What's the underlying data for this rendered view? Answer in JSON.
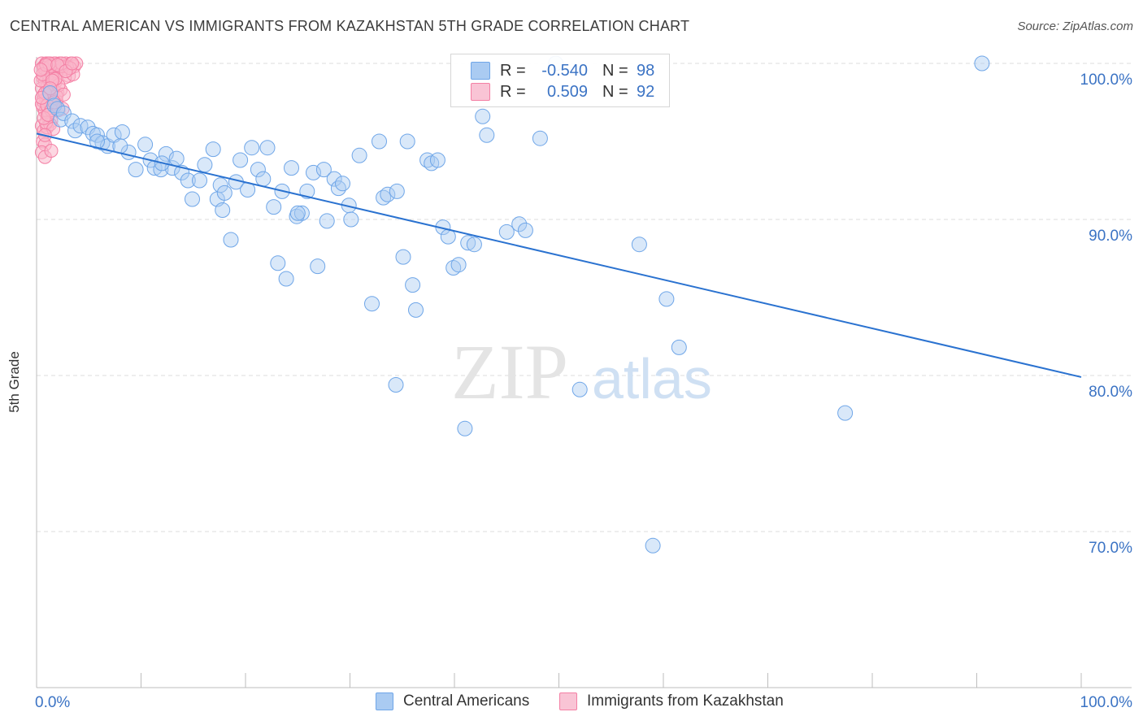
{
  "header": {
    "title": "CENTRAL AMERICAN VS IMMIGRANTS FROM KAZAKHSTAN 5TH GRADE CORRELATION CHART",
    "source": "Source: ZipAtlas.com"
  },
  "watermark": {
    "zip": "ZIP",
    "atlas": "atlas"
  },
  "legend": {
    "rows": [
      {
        "r_label": "R =",
        "r_value": "-0.540",
        "n_label": "N =",
        "n_value": "98",
        "color": "#6fa6e8"
      },
      {
        "r_label": "R =",
        "r_value": "0.509",
        "n_label": "N =",
        "n_value": "92",
        "color": "#f47fa4"
      }
    ]
  },
  "bottom_legend": {
    "items": [
      {
        "label": "Central Americans",
        "color": "#6fa6e8"
      },
      {
        "label": "Immigrants from Kazakhstan",
        "color": "#f47fa4"
      }
    ]
  },
  "colors": {
    "blue_fill": "#aacbf2",
    "blue_stroke": "#6fa6e8",
    "blue_line": "#2a72d0",
    "pink_fill": "#f9b6cb",
    "pink_stroke": "#f47fa4",
    "axis_label": "#3b73c4"
  },
  "chart_data": {
    "type": "scatter",
    "title": "CENTRAL AMERICAN VS IMMIGRANTS FROM KAZAKHSTAN 5TH GRADE CORRELATION CHART",
    "xlabel": "",
    "ylabel": "5th Grade",
    "xlim": [
      0,
      100
    ],
    "ylim": [
      60,
      100
    ],
    "x_tick_labels": [
      "0.0%",
      "100.0%"
    ],
    "y_ticks": [
      100,
      90,
      80,
      70
    ],
    "y_tick_labels": [
      "100.0%",
      "90.0%",
      "80.0%",
      "70.0%"
    ],
    "grid": "horizontal dashed",
    "legend_position": "top-center",
    "series": [
      {
        "name": "Central Americans",
        "trend": {
          "x": [
            0,
            100
          ],
          "y": [
            95.5,
            79.9
          ]
        },
        "points": [
          [
            1.3,
            98.1
          ],
          [
            1.7,
            97.3
          ],
          [
            2.0,
            97.1
          ],
          [
            2.3,
            96.4
          ],
          [
            2.6,
            96.8
          ],
          [
            3.4,
            96.3
          ],
          [
            3.7,
            95.7
          ],
          [
            4.2,
            96.0
          ],
          [
            4.9,
            95.9
          ],
          [
            5.4,
            95.5
          ],
          [
            5.8,
            95.4
          ],
          [
            6.3,
            94.9
          ],
          [
            6.8,
            94.7
          ],
          [
            7.4,
            95.4
          ],
          [
            8.2,
            95.6
          ],
          [
            8.8,
            94.3
          ],
          [
            9.5,
            93.2
          ],
          [
            10.4,
            94.8
          ],
          [
            10.9,
            93.8
          ],
          [
            11.3,
            93.3
          ],
          [
            11.9,
            93.2
          ],
          [
            12.4,
            94.2
          ],
          [
            13.0,
            93.3
          ],
          [
            13.4,
            93.9
          ],
          [
            13.9,
            93.0
          ],
          [
            14.5,
            92.5
          ],
          [
            14.9,
            91.3
          ],
          [
            15.6,
            92.5
          ],
          [
            16.1,
            93.5
          ],
          [
            16.9,
            94.5
          ],
          [
            17.3,
            91.3
          ],
          [
            17.6,
            92.2
          ],
          [
            18.0,
            91.7
          ],
          [
            18.6,
            88.7
          ],
          [
            19.1,
            92.4
          ],
          [
            19.5,
            93.8
          ],
          [
            20.2,
            91.9
          ],
          [
            20.6,
            94.6
          ],
          [
            21.2,
            93.2
          ],
          [
            21.7,
            92.6
          ],
          [
            22.1,
            94.6
          ],
          [
            22.7,
            90.8
          ],
          [
            23.1,
            87.2
          ],
          [
            23.5,
            91.8
          ],
          [
            23.9,
            86.2
          ],
          [
            24.4,
            93.3
          ],
          [
            24.9,
            90.2
          ],
          [
            25.4,
            90.4
          ],
          [
            25.9,
            91.8
          ],
          [
            26.5,
            93.0
          ],
          [
            26.9,
            87.0
          ],
          [
            27.5,
            93.2
          ],
          [
            27.8,
            89.9
          ],
          [
            28.5,
            92.6
          ],
          [
            28.9,
            92.0
          ],
          [
            29.3,
            92.3
          ],
          [
            29.9,
            90.9
          ],
          [
            30.1,
            90.0
          ],
          [
            30.9,
            94.1
          ],
          [
            32.1,
            84.6
          ],
          [
            32.8,
            95.0
          ],
          [
            33.2,
            91.4
          ],
          [
            33.6,
            91.6
          ],
          [
            34.5,
            91.8
          ],
          [
            34.4,
            79.4
          ],
          [
            35.1,
            87.6
          ],
          [
            35.5,
            95.0
          ],
          [
            36.0,
            85.8
          ],
          [
            36.3,
            84.2
          ],
          [
            37.4,
            93.8
          ],
          [
            37.8,
            93.6
          ],
          [
            38.4,
            93.8
          ],
          [
            38.9,
            89.5
          ],
          [
            39.4,
            88.9
          ],
          [
            39.9,
            86.9
          ],
          [
            40.4,
            87.1
          ],
          [
            41.0,
            76.6
          ],
          [
            41.3,
            88.5
          ],
          [
            41.9,
            88.4
          ],
          [
            42.7,
            96.6
          ],
          [
            43.1,
            95.4
          ],
          [
            45.0,
            89.2
          ],
          [
            46.2,
            89.7
          ],
          [
            46.8,
            89.3
          ],
          [
            48.2,
            95.2
          ],
          [
            49.7,
            100.0
          ],
          [
            52.0,
            79.1
          ],
          [
            57.7,
            88.4
          ],
          [
            59.0,
            69.1
          ],
          [
            60.3,
            84.9
          ],
          [
            61.5,
            81.8
          ],
          [
            77.4,
            77.6
          ],
          [
            90.5,
            100.0
          ],
          [
            8.0,
            94.7
          ],
          [
            12.0,
            93.6
          ],
          [
            5.8,
            95.0
          ],
          [
            17.8,
            90.6
          ],
          [
            25.0,
            90.4
          ]
        ]
      },
      {
        "name": "Immigrants from Kazakhstan",
        "points": [
          [
            0.5,
            100.0
          ],
          [
            0.7,
            99.8
          ],
          [
            0.9,
            99.5
          ],
          [
            1.0,
            100.0
          ],
          [
            1.2,
            99.6
          ],
          [
            1.3,
            100.0
          ],
          [
            1.5,
            99.8
          ],
          [
            1.6,
            99.4
          ],
          [
            1.8,
            100.0
          ],
          [
            2.0,
            99.7
          ],
          [
            2.2,
            100.0
          ],
          [
            2.4,
            99.6
          ],
          [
            2.6,
            99.8
          ],
          [
            2.8,
            100.0
          ],
          [
            3.0,
            99.6
          ],
          [
            3.1,
            99.2
          ],
          [
            3.3,
            100.0
          ],
          [
            3.6,
            99.8
          ],
          [
            3.8,
            100.0
          ],
          [
            0.6,
            99.1
          ],
          [
            0.8,
            98.8
          ],
          [
            1.0,
            98.5
          ],
          [
            1.2,
            98.9
          ],
          [
            1.4,
            98.6
          ],
          [
            1.6,
            98.3
          ],
          [
            1.8,
            98.8
          ],
          [
            2.0,
            98.1
          ],
          [
            0.5,
            98.4
          ],
          [
            0.7,
            98.0
          ],
          [
            0.9,
            97.7
          ],
          [
            1.1,
            97.9
          ],
          [
            1.3,
            97.5
          ],
          [
            1.5,
            97.7
          ],
          [
            1.7,
            97.3
          ],
          [
            1.9,
            97.6
          ],
          [
            2.1,
            97.0
          ],
          [
            0.6,
            97.2
          ],
          [
            0.8,
            96.9
          ],
          [
            1.0,
            96.6
          ],
          [
            1.2,
            96.8
          ],
          [
            1.4,
            96.3
          ],
          [
            0.5,
            96.0
          ],
          [
            0.7,
            95.7
          ],
          [
            1.0,
            95.9
          ],
          [
            0.6,
            95.0
          ],
          [
            0.8,
            94.8
          ],
          [
            0.5,
            94.3
          ],
          [
            0.8,
            94.0
          ],
          [
            1.4,
            94.4
          ],
          [
            2.3,
            98.3
          ],
          [
            2.5,
            97.1
          ],
          [
            1.1,
            99.3
          ],
          [
            1.9,
            99.5
          ],
          [
            2.7,
            99.1
          ],
          [
            0.9,
            100.0
          ],
          [
            1.7,
            100.0
          ],
          [
            2.9,
            99.8
          ],
          [
            3.5,
            99.3
          ],
          [
            0.4,
            98.9
          ],
          [
            0.6,
            97.6
          ],
          [
            1.3,
            96.1
          ],
          [
            0.7,
            99.7
          ],
          [
            1.5,
            99.1
          ],
          [
            2.3,
            99.8
          ],
          [
            1.1,
            98.2
          ],
          [
            1.9,
            97.9
          ],
          [
            0.5,
            97.4
          ],
          [
            0.9,
            96.2
          ],
          [
            2.1,
            98.6
          ],
          [
            1.3,
            99.8
          ],
          [
            3.2,
            99.7
          ],
          [
            1.6,
            95.8
          ],
          [
            0.8,
            98.1
          ],
          [
            1.0,
            97.3
          ],
          [
            1.4,
            97.0
          ],
          [
            0.6,
            99.3
          ],
          [
            2.4,
            100.0
          ],
          [
            1.2,
            100.0
          ],
          [
            0.7,
            96.5
          ],
          [
            1.8,
            99.0
          ],
          [
            2.6,
            98.0
          ],
          [
            0.9,
            99.9
          ],
          [
            1.5,
            98.9
          ],
          [
            2.0,
            99.9
          ],
          [
            0.5,
            97.8
          ],
          [
            1.1,
            96.7
          ],
          [
            1.7,
            97.5
          ],
          [
            0.4,
            99.6
          ],
          [
            2.8,
            99.5
          ],
          [
            3.4,
            100.0
          ],
          [
            1.3,
            98.4
          ],
          [
            0.8,
            95.4
          ]
        ]
      }
    ]
  }
}
